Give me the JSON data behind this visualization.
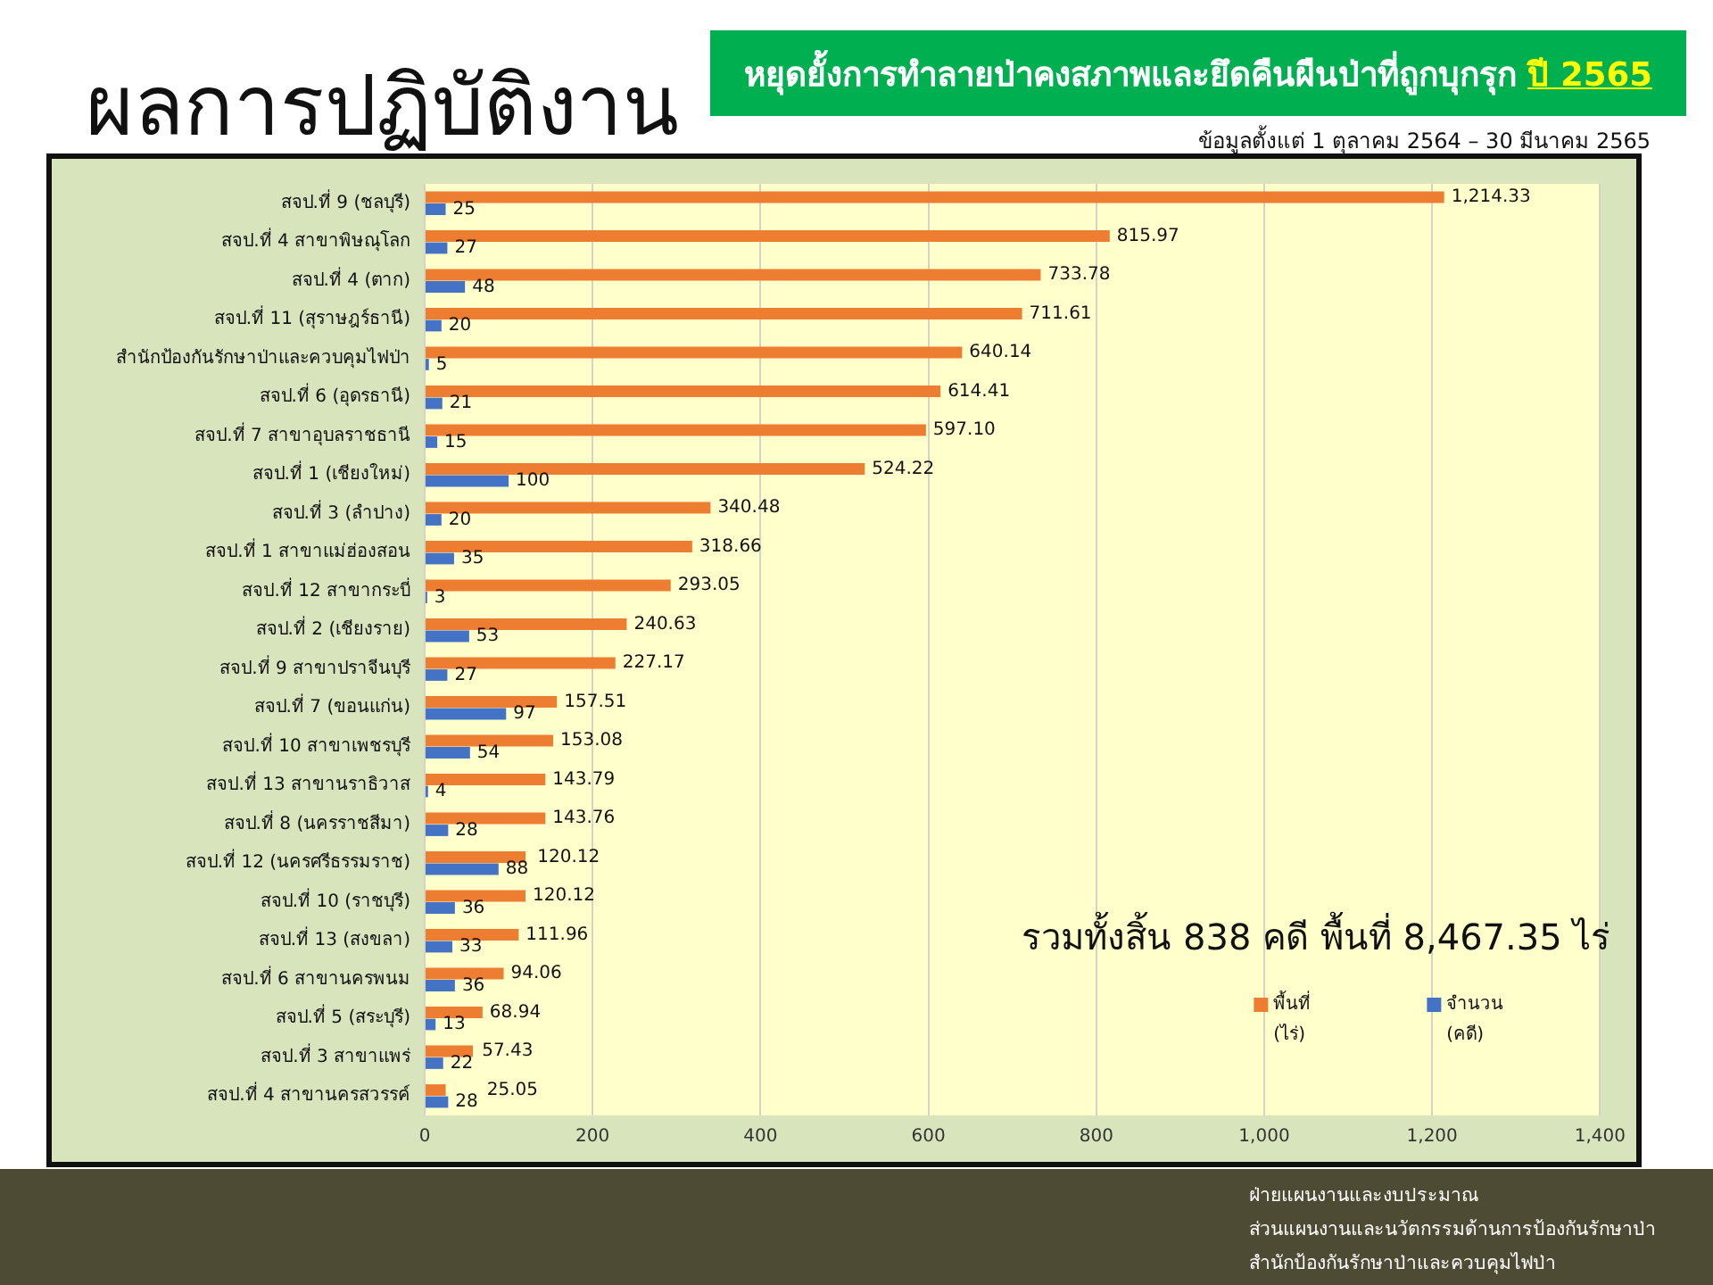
{
  "chart_data": {
    "type": "bar",
    "orientation": "horizontal",
    "title": "ผลการปฏิบัติงาน",
    "subtitle": "หยุดยั้งการทำลายป่าคงสภาพและยึดคืนผืนป่าที่ถูกบุกรุก ปี 2565",
    "categories": [
      "สจป.ที่ 9 (ชลบุรี)",
      "สจป.ที่ 4 สาขาพิษณุโลก",
      "สจป.ที่ 4 (ตาก)",
      "สจป.ที่ 11 (สุราษฎร์ธานี)",
      "สำนักป้องกันรักษาป่าและควบคุมไฟป่า",
      "สจป.ที่ 6 (อุดรธานี)",
      "สจป.ที่ 7 สาขาอุบลราชธานี",
      "สจป.ที่ 1 (เชียงใหม่)",
      "สจป.ที่ 3 (ลำปาง)",
      "สจป.ที่ 1 สาขาแม่ฮ่องสอน",
      "สจป.ที่ 12 สาขากระบี่",
      "สจป.ที่ 2 (เชียงราย)",
      "สจป.ที่ 9 สาขาปราจีนบุรี",
      "สจป.ที่ 7 (ขอนแก่น)",
      "สจป.ที่ 10 สาขาเพชรบุรี",
      "สจป.ที่ 13 สาขานราธิวาส",
      "สจป.ที่ 8 (นครราชสีมา)",
      "สจป.ที่ 12 (นครศรีธรรมราช)",
      "สจป.ที่ 10 (ราชบุรี)",
      "สจป.ที่ 13 (สงขลา)",
      "สจป.ที่ 6 สาขานครพนม",
      "สจป.ที่ 5 (สระบุรี)",
      "สจป.ที่ 3 สาขาแพร่",
      "สจป.ที่ 4 สาขานครสวรรค์"
    ],
    "series": [
      {
        "name": "พื้นที่ (ไร่)",
        "color": "#ed7d31",
        "values": [
          1214.33,
          815.97,
          733.78,
          711.61,
          640.14,
          614.41,
          597.1,
          524.22,
          340.48,
          318.66,
          293.05,
          240.63,
          227.17,
          157.51,
          153.08,
          143.79,
          143.76,
          120.12,
          120.12,
          111.96,
          94.06,
          68.94,
          57.43,
          25.05
        ],
        "value_labels": [
          "1,214.33",
          "815.97",
          "733.78",
          "711.61",
          "640.14",
          "614.41",
          "597.10",
          "524.22",
          "340.48",
          "318.66",
          "293.05",
          "240.63",
          "227.17",
          "157.51",
          "153.08",
          "143.79",
          "143.76",
          "120.12",
          "120.12",
          "111.96",
          "94.06",
          "68.94",
          "57.43",
          "25.05"
        ]
      },
      {
        "name": "จำนวน (คดี)",
        "color": "#4472c4",
        "values": [
          25,
          27,
          48,
          20,
          5,
          21,
          15,
          100,
          20,
          35,
          3,
          53,
          27,
          97,
          54,
          4,
          28,
          88,
          36,
          33,
          36,
          13,
          22,
          28
        ],
        "value_labels": [
          "25",
          "27",
          "48",
          "20",
          "5",
          "21",
          "15",
          "100",
          "20",
          "35",
          "3",
          "53",
          "27",
          "97",
          "54",
          "4",
          "28",
          "88",
          "36",
          "33",
          "36",
          "13",
          "22",
          "28"
        ]
      }
    ],
    "xlim": [
      0,
      1400
    ],
    "xticks": [
      0,
      200,
      400,
      600,
      800,
      {
        "value": 1000,
        "label": "1,000"
      },
      {
        "value": 1200,
        "label": "1,200"
      },
      {
        "value": 1400,
        "label": "1,400"
      }
    ],
    "grid": "x",
    "legend": "bottom right",
    "annotations": [
      "ข้อมูลตั้งแต่ 1 ตุลาคม 2564 – 30 มีนาคม 2565",
      "รวมทั้งสิ้น 838 คดี พื้นที่ 8,467.35 ไร่",
      "ฝ่ายแผนงานและงบประมาณ",
      "ส่วนแผนงานและนวัตกรรมด้านการป้องกันรักษาป่า",
      "สำนักป้องกันรักษาป่าและควบคุมไฟป่า"
    ]
  }
}
